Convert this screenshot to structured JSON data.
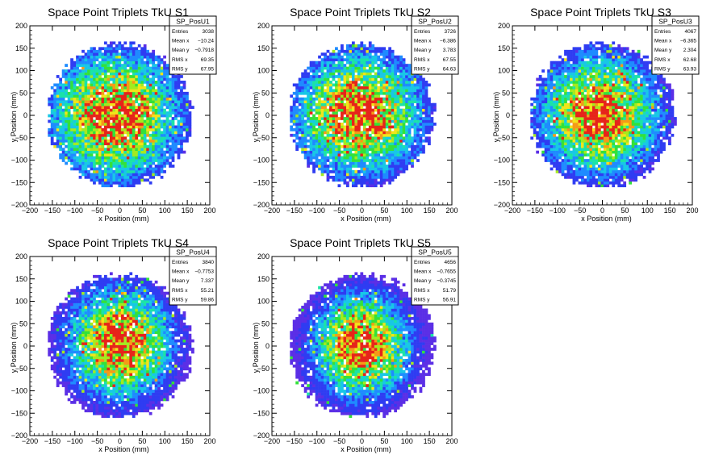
{
  "chart_data": [
    {
      "type": "heatmap",
      "title": "Space Point Triplets TkU S1",
      "xlabel": "x Position (mm)",
      "ylabel": "y Position (mm)",
      "xlim": [
        -200,
        200
      ],
      "ylim": [
        -200,
        200
      ],
      "xticks": [
        -200,
        -150,
        -100,
        -50,
        0,
        50,
        100,
        150,
        200
      ],
      "yticks": [
        -200,
        -150,
        -100,
        -50,
        0,
        50,
        100,
        150,
        200
      ],
      "stats": {
        "name": "SP_PosU1",
        "rows": [
          {
            "label": "Entries",
            "value": "3038"
          },
          {
            "label": "Mean x",
            "value": "−10.24"
          },
          {
            "label": "Mean y",
            "value": "−0.7918"
          },
          {
            "label": "RMS x",
            "value": "69.35"
          },
          {
            "label": "RMS y",
            "value": "67.95"
          }
        ]
      },
      "distribution": {
        "mean_x": -10.24,
        "mean_y": -0.7918,
        "rms_x": 69.35,
        "rms_y": 67.95,
        "radius": 160
      }
    },
    {
      "type": "heatmap",
      "title": "Space Point Triplets TkU S2",
      "xlabel": "x Position (mm)",
      "ylabel": "y Position (mm)",
      "xlim": [
        -200,
        200
      ],
      "ylim": [
        -200,
        200
      ],
      "xticks": [
        -200,
        -150,
        -100,
        -50,
        0,
        50,
        100,
        150,
        200
      ],
      "yticks": [
        -200,
        -150,
        -100,
        -50,
        0,
        50,
        100,
        150,
        200
      ],
      "stats": {
        "name": "SP_PosU2",
        "rows": [
          {
            "label": "Entries",
            "value": "3726"
          },
          {
            "label": "Mean x",
            "value": "−6.386"
          },
          {
            "label": "Mean y",
            "value": "3.783"
          },
          {
            "label": "RMS x",
            "value": "67.55"
          },
          {
            "label": "RMS y",
            "value": "64.63"
          }
        ]
      },
      "distribution": {
        "mean_x": -6.386,
        "mean_y": 3.783,
        "rms_x": 67.55,
        "rms_y": 64.63,
        "radius": 160
      }
    },
    {
      "type": "heatmap",
      "title": "Space Point Triplets TkU S3",
      "xlabel": "x Position (mm)",
      "ylabel": "y Position (mm)",
      "xlim": [
        -200,
        200
      ],
      "ylim": [
        -200,
        200
      ],
      "xticks": [
        -200,
        -150,
        -100,
        -50,
        0,
        50,
        100,
        150,
        200
      ],
      "yticks": [
        -200,
        -150,
        -100,
        -50,
        0,
        50,
        100,
        150,
        200
      ],
      "stats": {
        "name": "SP_PosU3",
        "rows": [
          {
            "label": "Entries",
            "value": "4067"
          },
          {
            "label": "Mean x",
            "value": "−6.365"
          },
          {
            "label": "Mean y",
            "value": "2.304"
          },
          {
            "label": "RMS x",
            "value": "62.68"
          },
          {
            "label": "RMS y",
            "value": "63.93"
          }
        ]
      },
      "distribution": {
        "mean_x": -6.365,
        "mean_y": 2.304,
        "rms_x": 62.68,
        "rms_y": 63.93,
        "radius": 160
      }
    },
    {
      "type": "heatmap",
      "title": "Space Point Triplets TkU S4",
      "xlabel": "x Position (mm)",
      "ylabel": "y Position (mm)",
      "xlim": [
        -200,
        200
      ],
      "ylim": [
        -200,
        200
      ],
      "xticks": [
        -200,
        -150,
        -100,
        -50,
        0,
        50,
        100,
        150,
        200
      ],
      "yticks": [
        -200,
        -150,
        -100,
        -50,
        0,
        50,
        100,
        150,
        200
      ],
      "stats": {
        "name": "SP_PosU4",
        "rows": [
          {
            "label": "Entries",
            "value": "3840"
          },
          {
            "label": "Mean x",
            "value": "−0.7753"
          },
          {
            "label": "Mean y",
            "value": "7.337"
          },
          {
            "label": "RMS x",
            "value": "55.21"
          },
          {
            "label": "RMS y",
            "value": "59.86"
          }
        ]
      },
      "distribution": {
        "mean_x": -0.7753,
        "mean_y": 7.337,
        "rms_x": 55.21,
        "rms_y": 59.86,
        "radius": 160
      }
    },
    {
      "type": "heatmap",
      "title": "Space Point Triplets TkU S5",
      "xlabel": "x Position (mm)",
      "ylabel": "y Position (mm)",
      "xlim": [
        -200,
        200
      ],
      "ylim": [
        -200,
        200
      ],
      "xticks": [
        -200,
        -150,
        -100,
        -50,
        0,
        50,
        100,
        150,
        200
      ],
      "yticks": [
        -200,
        -150,
        -100,
        -50,
        0,
        50,
        100,
        150,
        200
      ],
      "stats": {
        "name": "SP_PosU5",
        "rows": [
          {
            "label": "Entries",
            "value": "4656"
          },
          {
            "label": "Mean x",
            "value": "−0.7655"
          },
          {
            "label": "Mean y",
            "value": "−0.3745"
          },
          {
            "label": "RMS x",
            "value": "51.79"
          },
          {
            "label": "RMS y",
            "value": "56.91"
          }
        ]
      },
      "distribution": {
        "mean_x": -0.7655,
        "mean_y": -0.3745,
        "rms_x": 51.79,
        "rms_y": 56.91,
        "radius": 160
      }
    }
  ],
  "colors": {
    "palette": [
      "#5b2fe6",
      "#2f3cf2",
      "#1f8bff",
      "#18c7e6",
      "#1be3a7",
      "#33e13a",
      "#a4ea1f",
      "#f2e41a",
      "#f59a18",
      "#e6241a"
    ]
  }
}
